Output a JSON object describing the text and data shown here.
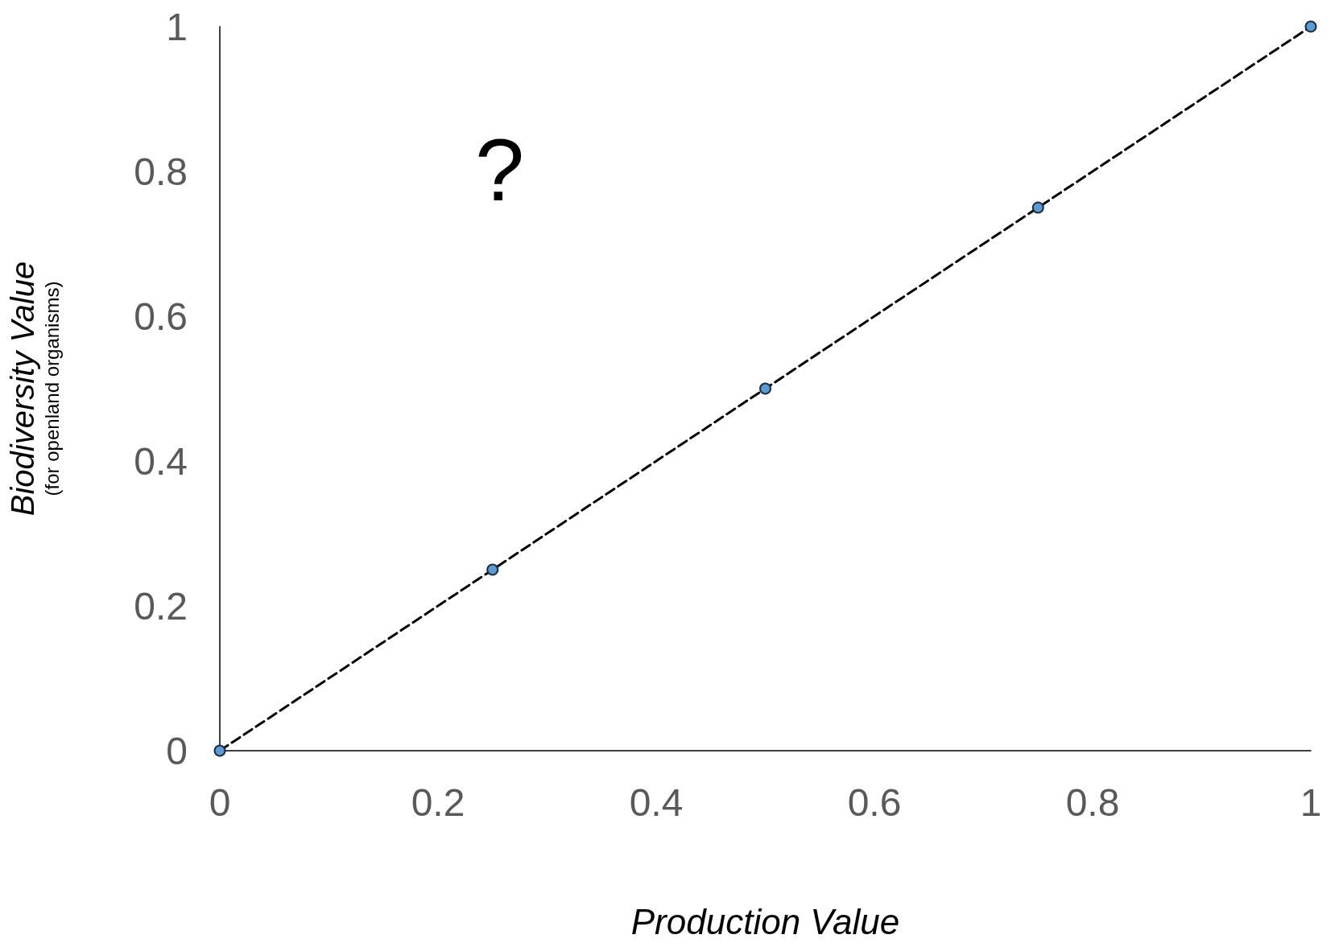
{
  "chart_data": {
    "type": "line",
    "xlabel": "Production Value",
    "ylabel": "Biodiversity Value\n(for openland organisms)",
    "x": [
      0,
      0.25,
      0.5,
      0.75,
      1
    ],
    "series": [
      {
        "color": "#5b9bd5",
        "values": [
          0,
          0.25,
          0.5,
          0.75,
          1
        ]
      }
    ],
    "xlim": [
      0,
      1
    ],
    "ylim": [
      0,
      1
    ],
    "xticks": [
      0,
      0.2,
      0.4,
      0.6,
      0.8,
      1
    ],
    "yticks": [
      0,
      0.2,
      0.4,
      0.6,
      0.8,
      1
    ],
    "grid": false,
    "marker": "circle",
    "line_style": "dashed",
    "annotations": [
      "?"
    ]
  }
}
